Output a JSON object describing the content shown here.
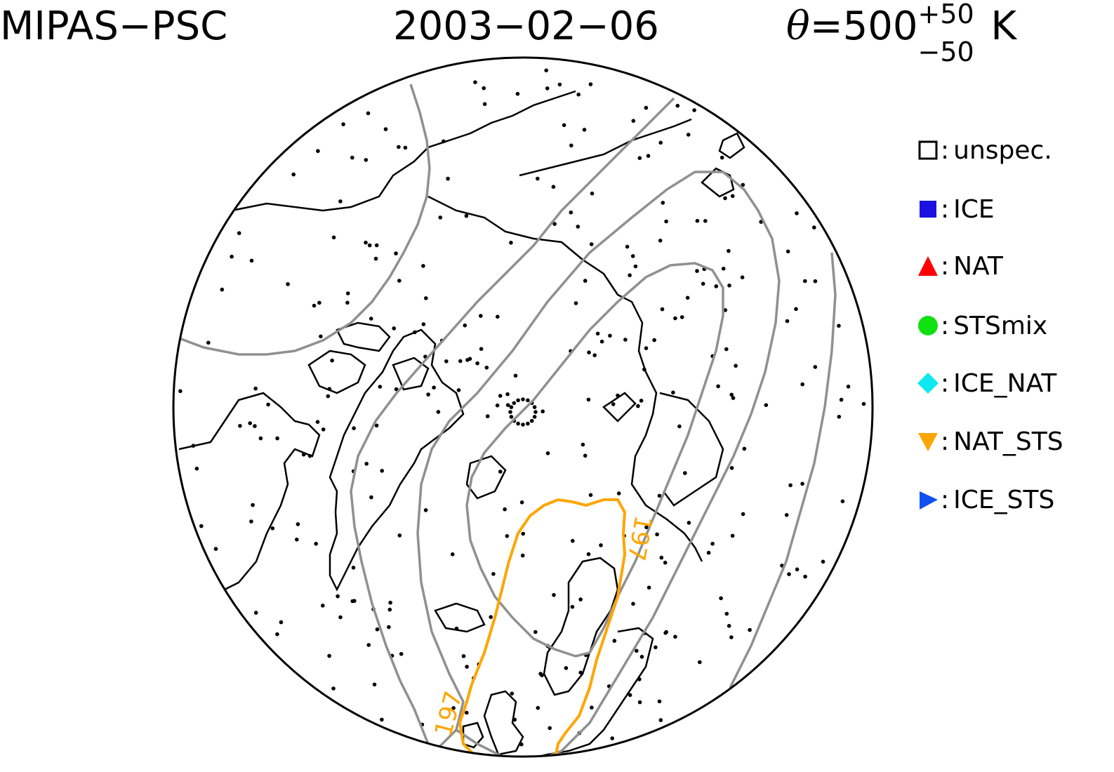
{
  "header": {
    "instrument": "MIPAS−PSC",
    "date": "2003−02−06",
    "theta_symbol": "θ",
    "theta_eq": "=500",
    "theta_plus": "+50",
    "theta_minus": "−50",
    "theta_unit": "K"
  },
  "legend": {
    "items": [
      {
        "label": "unspec.",
        "shape": "open-square",
        "color": "#000000"
      },
      {
        "label": "ICE",
        "shape": "square",
        "color": "#1a10e0"
      },
      {
        "label": "NAT",
        "shape": "triangle-up",
        "color": "#ff0000"
      },
      {
        "label": "STSmix",
        "shape": "circle",
        "color": "#10e010"
      },
      {
        "label": "ICE_NAT",
        "shape": "diamond",
        "color": "#10e8f0"
      },
      {
        "label": "NAT_STS",
        "shape": "triangle-down",
        "color": "#ffa500"
      },
      {
        "label": "ICE_STS",
        "shape": "triangle-right",
        "color": "#1050f0"
      }
    ]
  },
  "map": {
    "projection": "north polar stereographic",
    "contour_label": "197",
    "contour_label_2": "197",
    "contour_197_color": "#ffa500",
    "contour_grey_color": "#909090",
    "coastline_color": "#000000"
  }
}
